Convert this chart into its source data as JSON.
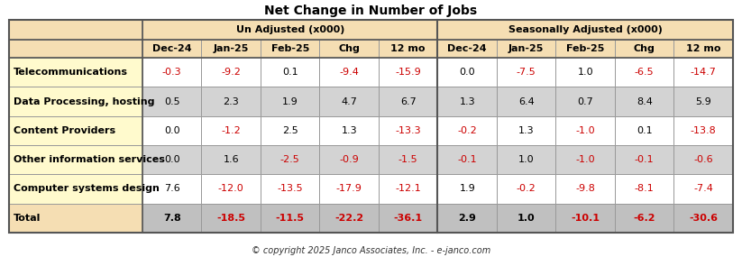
{
  "title": "Net Change in Number of Jobs",
  "copyright": "© copyright 2025 Janco Associates, Inc. - e-janco.com",
  "col_groups": [
    {
      "label": "Un Adjusted (x000)",
      "cols": 5
    },
    {
      "label": "Seasonally Adjusted (x000)",
      "cols": 5
    }
  ],
  "sub_headers": [
    "Dec-24",
    "Jan-25",
    "Feb-25",
    "Chg",
    "12 mo",
    "Dec-24",
    "Jan-25",
    "Feb-25",
    "Chg",
    "12 mo"
  ],
  "row_labels": [
    "Telecommunications",
    "Data Processing, hosting",
    "Content Providers",
    "Other information services",
    "Computer systems design",
    "Total"
  ],
  "data": [
    [
      "-0.3",
      "-9.2",
      "0.1",
      "-9.4",
      "-15.9",
      "0.0",
      "-7.5",
      "1.0",
      "-6.5",
      "-14.7"
    ],
    [
      "0.5",
      "2.3",
      "1.9",
      "4.7",
      "6.7",
      "1.3",
      "6.4",
      "0.7",
      "8.4",
      "5.9"
    ],
    [
      "0.0",
      "-1.2",
      "2.5",
      "1.3",
      "-13.3",
      "-0.2",
      "1.3",
      "-1.0",
      "0.1",
      "-13.8"
    ],
    [
      "0.0",
      "1.6",
      "-2.5",
      "-0.9",
      "-1.5",
      "-0.1",
      "1.0",
      "-1.0",
      "-0.1",
      "-0.6"
    ],
    [
      "7.6",
      "-12.0",
      "-13.5",
      "-17.9",
      "-12.1",
      "1.9",
      "-0.2",
      "-9.8",
      "-8.1",
      "-7.4"
    ],
    [
      "7.8",
      "-18.5",
      "-11.5",
      "-22.2",
      "-36.1",
      "2.9",
      "1.0",
      "-10.1",
      "-6.2",
      "-30.6"
    ]
  ],
  "header_bg": "#F5DEB3",
  "label_bg": "#FFFACD",
  "row_bg_even": "#FFFFFF",
  "row_bg_odd": "#D3D3D3",
  "total_label_bg": "#F5DEB3",
  "total_data_bg": "#C0C0C0",
  "negative_color": "#CC0000",
  "positive_color": "#000000",
  "border_color": "#999999",
  "title_fontsize": 10,
  "header_fontsize": 8,
  "data_fontsize": 8,
  "label_fontsize": 8
}
